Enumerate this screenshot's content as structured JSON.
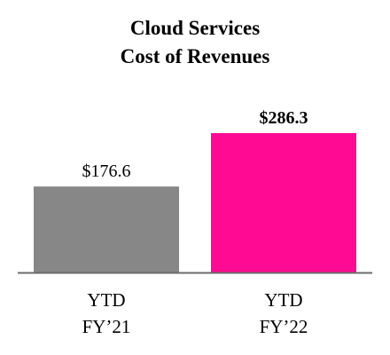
{
  "chart_data": {
    "type": "bar",
    "title": [
      "Cloud Services",
      "Cost of Revenues"
    ],
    "categories": [
      [
        "YTD",
        "FY’21"
      ],
      [
        "YTD",
        "FY’22"
      ]
    ],
    "values": [
      176.6,
      286.3
    ],
    "data_labels": [
      "$176.6",
      "$286.3"
    ],
    "data_label_bold": [
      false,
      true
    ],
    "colors": [
      "#878787",
      "#ff0a93"
    ],
    "axis_color": "#6b6b6b",
    "ylim": [
      0,
      286.3
    ],
    "grid": false,
    "legend": "none"
  }
}
